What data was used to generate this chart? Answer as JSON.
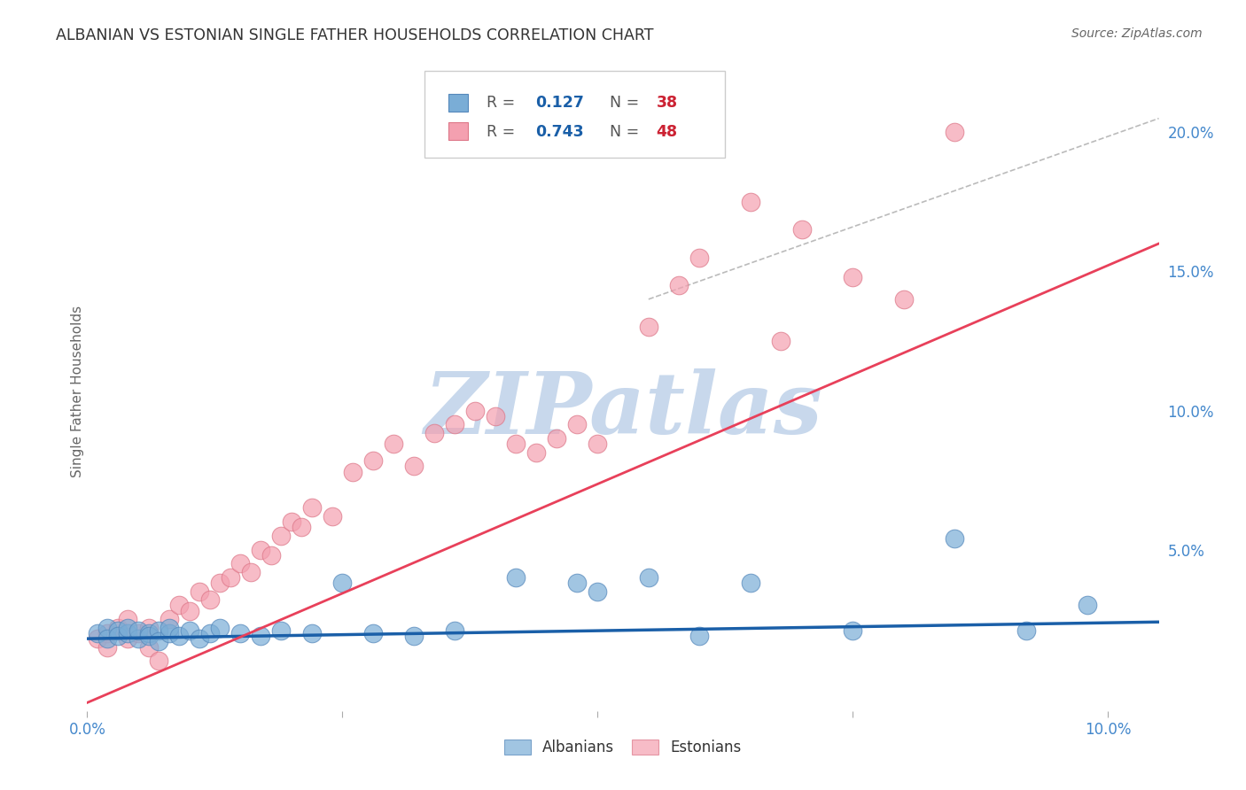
{
  "title": "ALBANIAN VS ESTONIAN SINGLE FATHER HOUSEHOLDS CORRELATION CHART",
  "source": "Source: ZipAtlas.com",
  "ylabel": "Single Father Households",
  "xlim": [
    0.0,
    0.105
  ],
  "ylim": [
    -0.008,
    0.222
  ],
  "albanian_color": "#7aadd6",
  "estonian_color": "#f4a0b0",
  "albanian_edge": "#5588bb",
  "estonian_edge": "#dd7788",
  "albanian_R": 0.127,
  "albanian_N": 38,
  "estonian_R": 0.743,
  "estonian_N": 48,
  "albanian_line_color": "#1a5fa8",
  "estonian_line_color": "#e8405a",
  "ref_line_color": "#bbbbbb",
  "background_color": "#ffffff",
  "grid_color": "#dddddd",
  "title_color": "#333333",
  "axis_tick_color": "#4488cc",
  "ylabel_color": "#666666",
  "watermark_color": "#c8d8ec",
  "watermark_text": "ZIPatlas",
  "legend_text_color": "#555555",
  "legend_R_color": "#1a5fa8",
  "legend_N_color": "#cc2233",
  "albanian_x": [
    0.001,
    0.002,
    0.002,
    0.003,
    0.003,
    0.004,
    0.004,
    0.005,
    0.005,
    0.006,
    0.006,
    0.007,
    0.007,
    0.008,
    0.008,
    0.009,
    0.01,
    0.011,
    0.012,
    0.013,
    0.015,
    0.017,
    0.019,
    0.022,
    0.025,
    0.028,
    0.032,
    0.036,
    0.042,
    0.048,
    0.05,
    0.055,
    0.06,
    0.065,
    0.075,
    0.085,
    0.092,
    0.098
  ],
  "albanian_y": [
    0.02,
    0.022,
    0.018,
    0.021,
    0.019,
    0.02,
    0.022,
    0.018,
    0.021,
    0.02,
    0.019,
    0.021,
    0.017,
    0.02,
    0.022,
    0.019,
    0.021,
    0.018,
    0.02,
    0.022,
    0.02,
    0.019,
    0.021,
    0.02,
    0.038,
    0.02,
    0.019,
    0.021,
    0.04,
    0.038,
    0.035,
    0.04,
    0.019,
    0.038,
    0.021,
    0.054,
    0.021,
    0.03
  ],
  "estonian_x": [
    0.001,
    0.002,
    0.002,
    0.003,
    0.004,
    0.004,
    0.005,
    0.006,
    0.006,
    0.007,
    0.008,
    0.009,
    0.01,
    0.011,
    0.012,
    0.013,
    0.014,
    0.015,
    0.016,
    0.017,
    0.018,
    0.019,
    0.02,
    0.021,
    0.022,
    0.024,
    0.026,
    0.028,
    0.03,
    0.032,
    0.034,
    0.036,
    0.038,
    0.04,
    0.042,
    0.044,
    0.046,
    0.048,
    0.05,
    0.055,
    0.058,
    0.06,
    0.065,
    0.068,
    0.07,
    0.075,
    0.08,
    0.085
  ],
  "estonian_y": [
    0.018,
    0.02,
    0.015,
    0.022,
    0.018,
    0.025,
    0.02,
    0.015,
    0.022,
    0.01,
    0.025,
    0.03,
    0.028,
    0.035,
    0.032,
    0.038,
    0.04,
    0.045,
    0.042,
    0.05,
    0.048,
    0.055,
    0.06,
    0.058,
    0.065,
    0.062,
    0.078,
    0.082,
    0.088,
    0.08,
    0.092,
    0.095,
    0.1,
    0.098,
    0.088,
    0.085,
    0.09,
    0.095,
    0.088,
    0.13,
    0.145,
    0.155,
    0.175,
    0.125,
    0.165,
    0.148,
    0.14,
    0.2
  ],
  "alb_line_x": [
    0.0,
    0.105
  ],
  "alb_line_y": [
    0.018,
    0.024
  ],
  "est_line_x": [
    0.0,
    0.105
  ],
  "est_line_y": [
    -0.005,
    0.16
  ],
  "ref_line_x": [
    0.055,
    0.105
  ],
  "ref_line_y": [
    0.14,
    0.205
  ]
}
